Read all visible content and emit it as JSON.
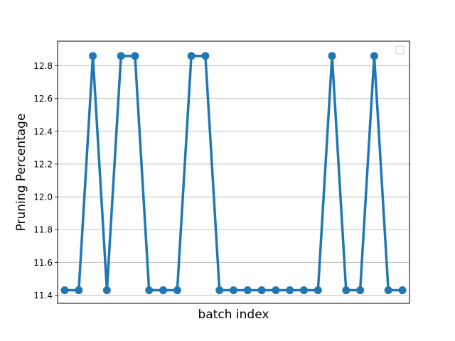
{
  "chart_data": {
    "type": "line",
    "title": "",
    "xlabel": "batch index",
    "ylabel": "Pruning Percentage",
    "x": [
      0,
      1,
      2,
      3,
      4,
      5,
      6,
      7,
      8,
      9,
      10,
      11,
      12,
      13,
      14,
      15,
      16,
      17,
      18,
      19,
      20,
      21,
      22,
      23,
      24
    ],
    "series": [
      {
        "values": [
          11.43,
          11.43,
          12.86,
          11.43,
          12.86,
          12.86,
          11.43,
          11.43,
          11.43,
          12.86,
          12.86,
          11.43,
          11.43,
          11.43,
          11.43,
          11.43,
          11.43,
          11.43,
          11.43,
          12.86,
          11.43,
          11.43,
          12.86,
          11.43,
          11.43
        ],
        "color": "#1f77b4"
      }
    ],
    "ylim": [
      11.35,
      12.95
    ],
    "yticks": [
      11.4,
      11.6,
      11.8,
      12.0,
      12.2,
      12.4,
      12.6,
      12.8
    ],
    "ytick_labels": [
      "11.4",
      "11.6",
      "11.8",
      "12.0",
      "12.2",
      "12.4",
      "12.6",
      "12.8"
    ],
    "xticks_visible": false,
    "grid": "y-major",
    "legend": "top-right (empty)"
  }
}
